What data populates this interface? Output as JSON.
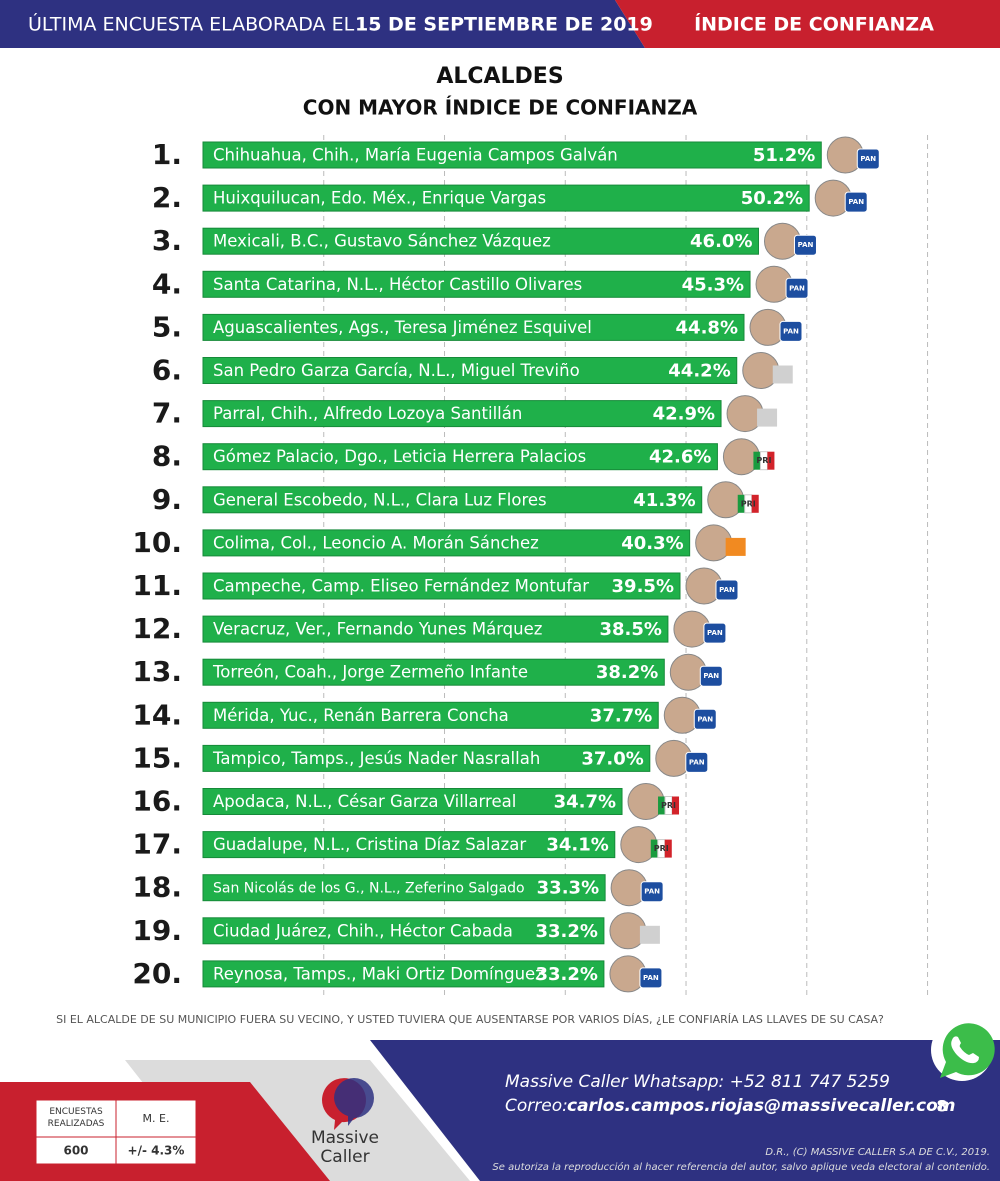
{
  "header": {
    "intro": "ÚLTIMA ENCUESTA ELABORADA EL",
    "date": "15 DE SEPTIEMBRE DE 2019",
    "section": "ÍNDICE DE CONFIANZA"
  },
  "chart_data": {
    "type": "bar",
    "orientation": "horizontal",
    "title": "ALCALDES",
    "subtitle": "CON MAYOR ÍNDICE DE CONFIANZA",
    "ranks": [
      "1.",
      "2.",
      "3.",
      "4.",
      "5.",
      "6.",
      "7.",
      "8.",
      "9.",
      "10.",
      "11.",
      "12.",
      "13.",
      "14.",
      "15.",
      "16.",
      "17.",
      "18.",
      "19.",
      "20."
    ],
    "categories": [
      "Chihuahua, Chih., María Eugenia Campos Galván",
      "Huixquilucan, Edo. Méx., Enrique Vargas",
      "Mexicali, B.C., Gustavo Sánchez Vázquez",
      "Santa Catarina, N.L., Héctor Castillo Olivares",
      "Aguascalientes, Ags., Teresa Jiménez Esquivel",
      "San Pedro Garza García, N.L., Miguel Treviño",
      "Parral, Chih., Alfredo Lozoya Santillán",
      "Gómez Palacio, Dgo., Leticia Herrera Palacios",
      "General Escobedo, N.L., Clara Luz Flores",
      "Colima, Col., Leoncio A. Morán Sánchez",
      "Campeche, Camp. Eliseo Fernández Montufar",
      "Veracruz, Ver., Fernando Yunes Márquez",
      "Torreón, Coah., Jorge Zermeño Infante",
      "Mérida, Yuc., Renán Barrera Concha",
      "Tampico, Tamps., Jesús Nader Nasrallah",
      "Apodaca, N.L., César Garza Villarreal",
      "Guadalupe, N.L., Cristina Díaz Salazar",
      "San Nicolás de los G., N.L., Zeferino Salgado",
      "Ciudad Juárez, Chih., Héctor Cabada",
      "Reynosa, Tamps., Maki Ortiz Domínguez"
    ],
    "values": [
      51.2,
      50.2,
      46.0,
      45.3,
      44.8,
      44.2,
      42.9,
      42.6,
      41.3,
      40.3,
      39.5,
      38.5,
      38.2,
      37.7,
      37.0,
      34.7,
      34.1,
      33.3,
      33.2,
      33.2
    ],
    "value_labels": [
      "51.2%",
      "50.2%",
      "46.0%",
      "45.3%",
      "44.8%",
      "44.2%",
      "42.9%",
      "42.6%",
      "41.3%",
      "40.3%",
      "39.5%",
      "38.5%",
      "38.2%",
      "37.7%",
      "37.0%",
      "34.7%",
      "34.1%",
      "33.3%",
      "33.2%",
      "33.2%"
    ],
    "parties": [
      "PAN",
      "PAN",
      "PAN",
      "PAN",
      "PAN",
      null,
      null,
      "PRI",
      "PRI",
      null,
      "PAN",
      "PAN",
      "PAN",
      "PAN",
      "PAN",
      "PRI",
      "PRI",
      "PAN",
      null,
      "PAN"
    ],
    "color": "#1fb04a",
    "xlim": [
      0,
      66
    ],
    "xticks": [
      10,
      20,
      30,
      40,
      50,
      60
    ],
    "grid": true
  },
  "question": "SI EL ALCALDE DE SU MUNICIPIO FUERA SU VECINO, Y USTED TUVIERA QUE AUSENTARSE POR VARIOS DÍAS, ¿LE CONFIARÍA LAS LLAVES DE SU CASA?",
  "table": {
    "headers": [
      "ENCUESTAS REALIZADAS",
      "M. E."
    ],
    "row": [
      "600",
      "+/- 4.3%"
    ]
  },
  "footer": {
    "logo": [
      "Massive",
      "Caller"
    ],
    "whatsapp": "Massive Caller Whatsapp: +52   811 747 5259",
    "email_label": "Correo:",
    "email": "carlos.campos.riojas@massivecaller.com",
    "page": "8",
    "copyright": "D.R., (C) MASSIVE CALLER S.A DE C.V., 2019.",
    "notice": "Se autoriza la reproducción al hacer referencia del autor, salvo aplique veda electoral al contenido."
  }
}
